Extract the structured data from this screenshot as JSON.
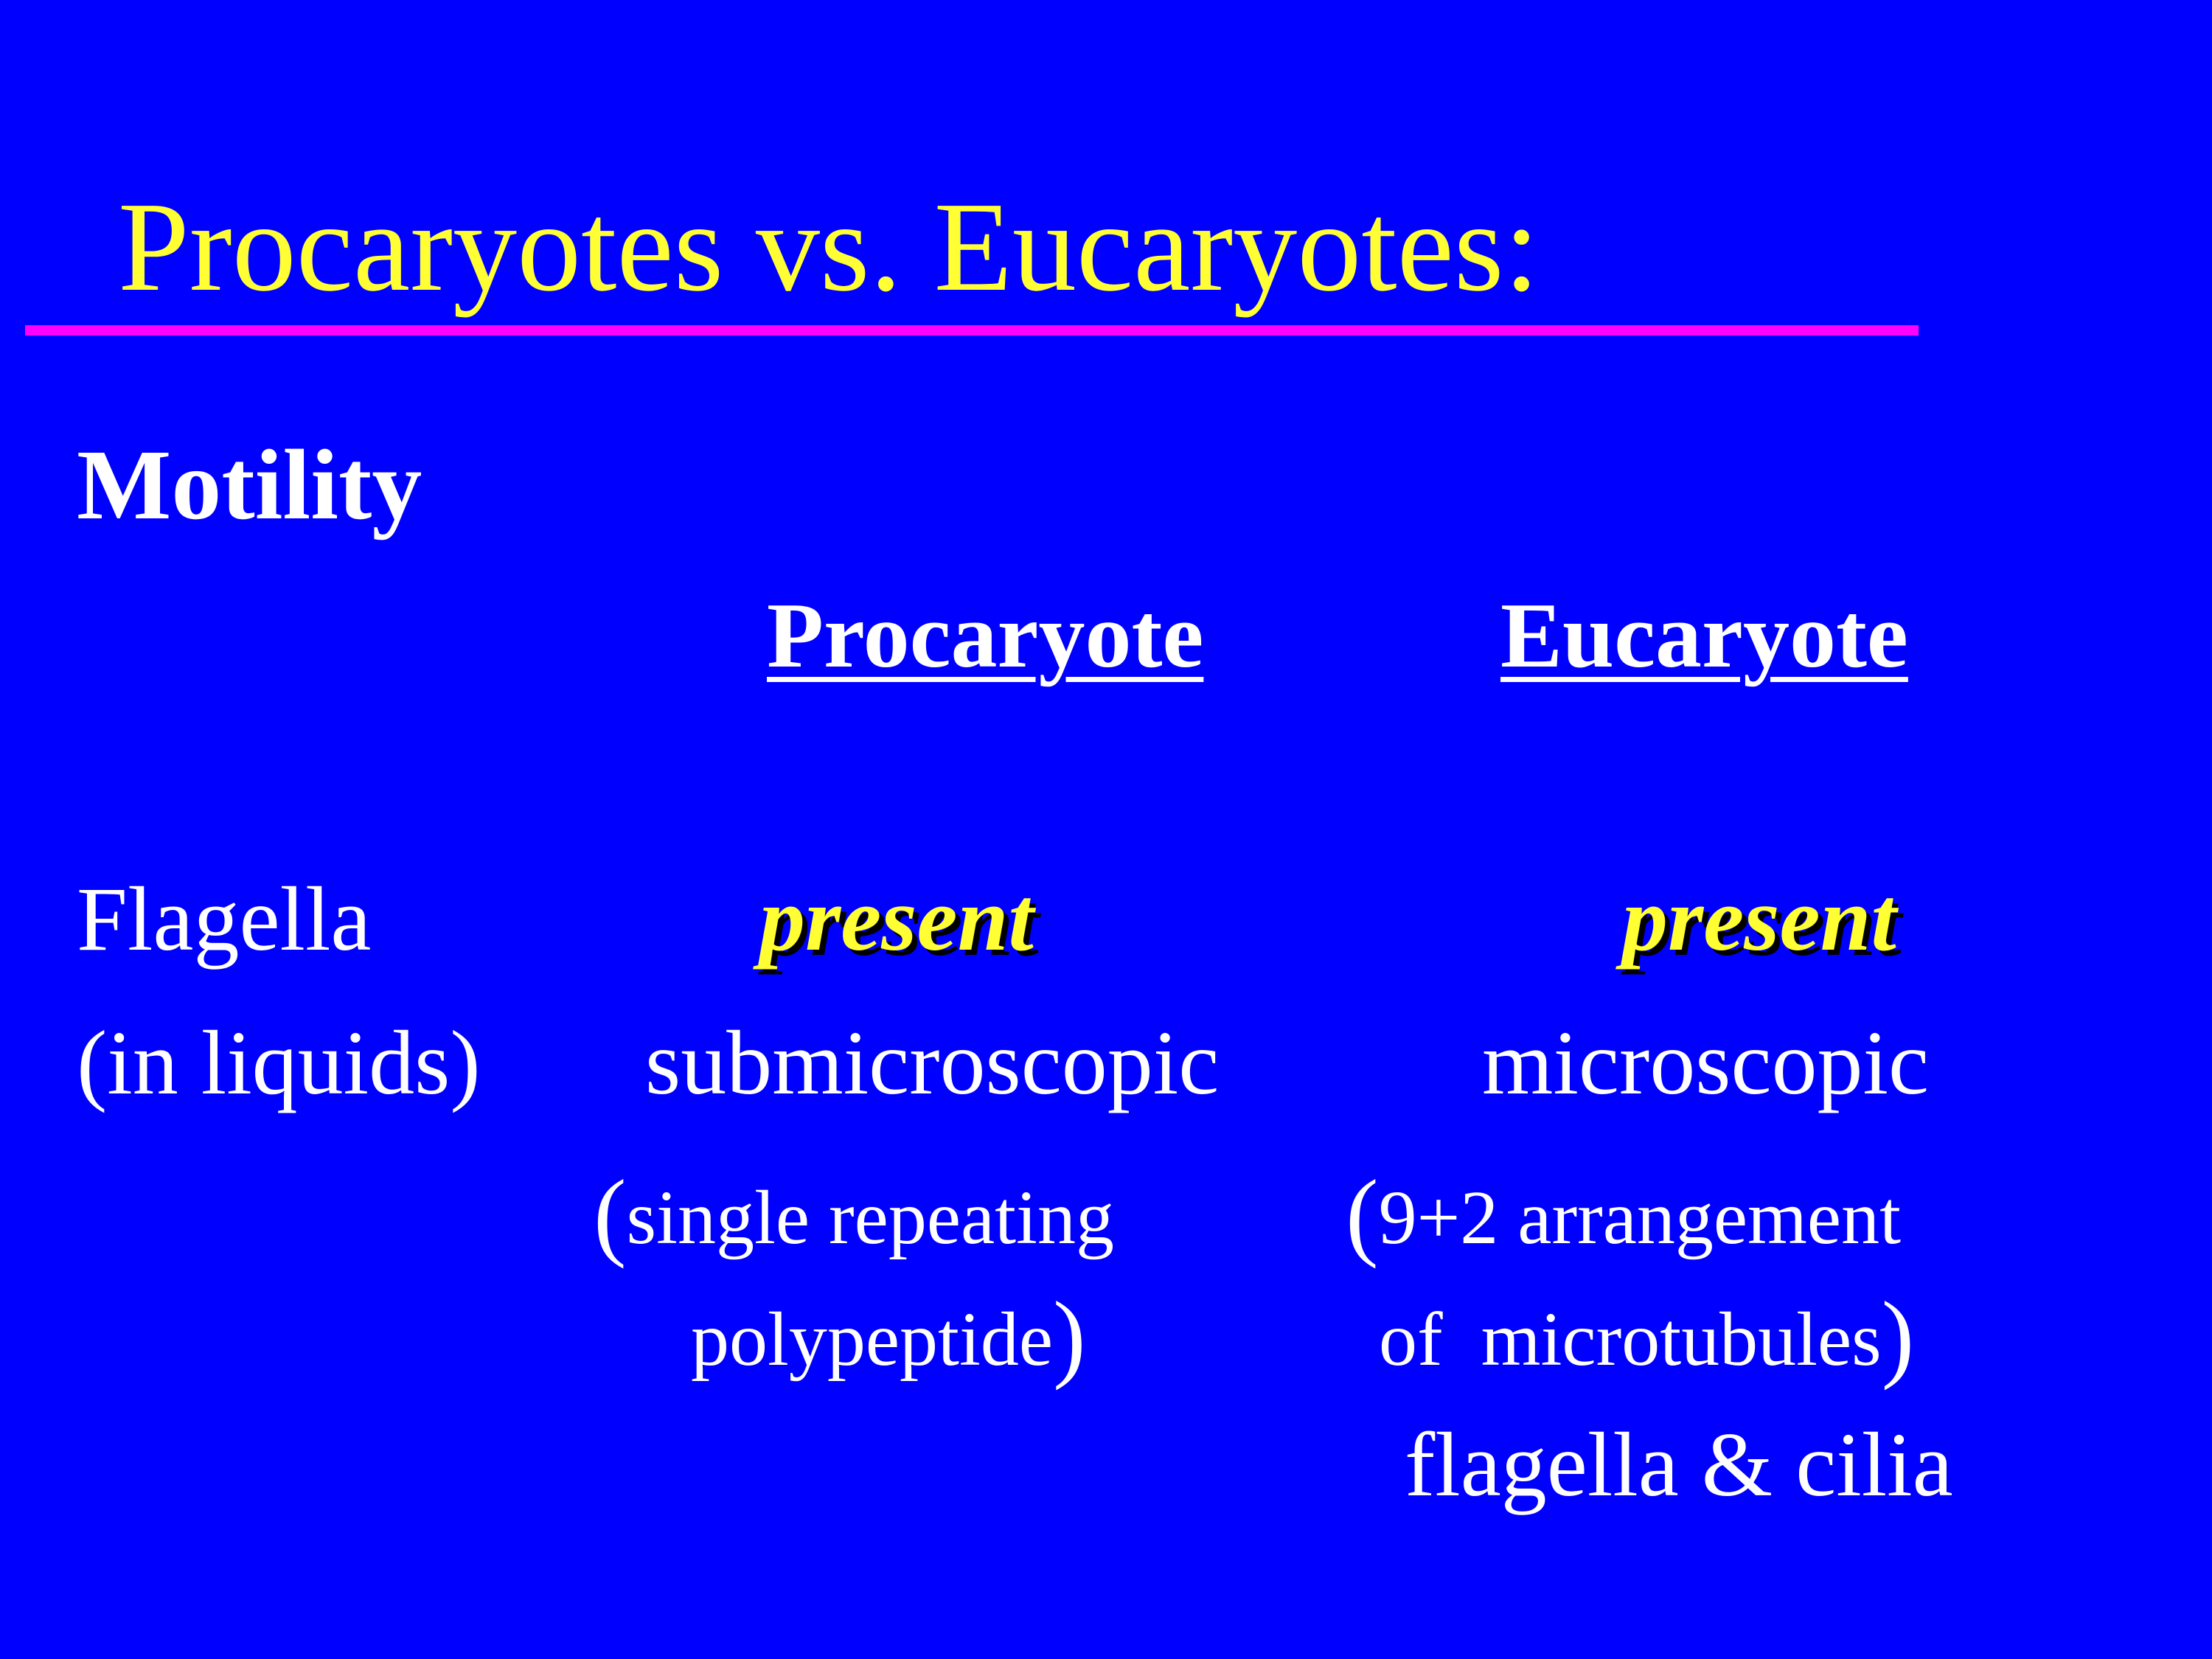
{
  "slide": {
    "title": "Procaryotes vs. Eucaryotes:",
    "colors": {
      "background": "#0000FF",
      "title": "#FFFF33",
      "rule": "#FF00FF",
      "text": "#FFFFFF",
      "highlight": "#FFFF33"
    },
    "section": "Motility",
    "columns": {
      "procaryote": "Procaryote",
      "eucaryote": "Eucaryote"
    },
    "rows": {
      "flagella_label": "Flagella",
      "liquids_label": "(in liquids)",
      "procaryote_presence": "present",
      "eucaryote_presence": "present",
      "procaryote_size": "submicroscopic",
      "eucaryote_size": "microscopic",
      "procaryote_detail_line1": "single repeating",
      "procaryote_detail_line2": "polypeptide",
      "eucaryote_detail_line1": "9+2 arrangement",
      "eucaryote_detail_line2": "of  microtubules",
      "eucaryote_note": "flagella & cilia"
    }
  }
}
